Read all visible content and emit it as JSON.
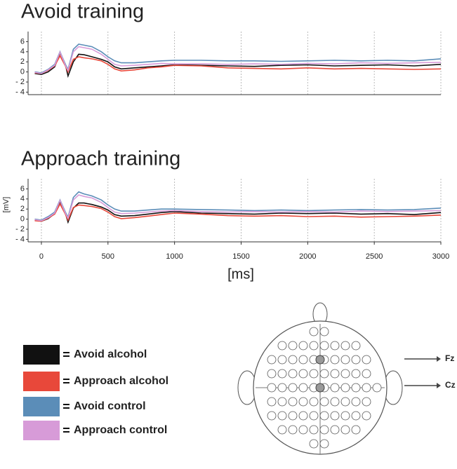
{
  "chart_data": [
    {
      "type": "line",
      "title": "Avoid training",
      "x": [
        -50,
        0,
        50,
        100,
        140,
        180,
        200,
        240,
        280,
        320,
        380,
        450,
        500,
        550,
        600,
        700,
        800,
        900,
        1000,
        1200,
        1400,
        1600,
        1800,
        2000,
        2200,
        2400,
        2600,
        2800,
        3000
      ],
      "xlim": [
        -100,
        3000
      ],
      "ylim": [
        -4.5,
        8
      ],
      "yticks": [
        6,
        4,
        2,
        0,
        {
          "value": -2,
          "label": "- 2"
        },
        {
          "value": -4,
          "label": "- 4"
        }
      ],
      "series": [
        {
          "name": "Avoid alcohol",
          "color": "#111111",
          "values": [
            -0.3,
            -0.5,
            0,
            1,
            3.8,
            1.5,
            -0.8,
            2,
            3.5,
            3.4,
            3,
            2.5,
            2,
            1,
            0.6,
            0.8,
            1,
            1.2,
            1.4,
            1.3,
            1.2,
            1.1,
            1.3,
            1.4,
            1.2,
            1.3,
            1.4,
            1.2,
            1.5
          ]
        },
        {
          "name": "Approach alcohol",
          "color": "#e8483a",
          "values": [
            -0.2,
            -0.3,
            0.3,
            1.2,
            3.2,
            1.2,
            0,
            2.5,
            3,
            2.8,
            2.6,
            2.2,
            1.5,
            0.6,
            0.2,
            0.4,
            0.8,
            1,
            1.3,
            1.2,
            0.8,
            0.7,
            0.6,
            0.8,
            0.6,
            0.7,
            0.6,
            0.5,
            0.6
          ]
        },
        {
          "name": "Avoid control",
          "color": "#5b8db8",
          "values": [
            0,
            -0.2,
            0.5,
            1.5,
            4,
            1.5,
            0.5,
            4.5,
            5.5,
            5.3,
            5,
            4,
            3,
            2.2,
            1.8,
            1.8,
            2,
            2.2,
            2.3,
            2.3,
            2.2,
            2.2,
            2.1,
            2.2,
            2.3,
            2.2,
            2.3,
            2.2,
            2.6
          ]
        },
        {
          "name": "Approach control",
          "color": "#d79bd8",
          "values": [
            -0.1,
            -0.3,
            0.4,
            1.3,
            3.9,
            1.3,
            0.3,
            4,
            5,
            4.8,
            4.5,
            3.5,
            2.5,
            1.5,
            1.2,
            1.3,
            1.5,
            1.7,
            1.6,
            1.6,
            1.5,
            1.6,
            1.5,
            1.7,
            1.6,
            1.8,
            1.7,
            1.8,
            1.9
          ]
        }
      ]
    },
    {
      "type": "line",
      "title": "Approach training",
      "xlabel": "[ms]",
      "ylabel": "[mV]",
      "x": [
        -50,
        0,
        50,
        100,
        140,
        180,
        200,
        240,
        280,
        320,
        380,
        450,
        500,
        550,
        600,
        700,
        800,
        900,
        1000,
        1200,
        1400,
        1600,
        1800,
        2000,
        2200,
        2400,
        2600,
        2800,
        3000
      ],
      "xlim": [
        -100,
        3000
      ],
      "xticks": [
        0,
        500,
        1000,
        1500,
        2000,
        2500,
        3000
      ],
      "ylim": [
        -4.5,
        8
      ],
      "yticks": [
        6,
        4,
        2,
        0,
        {
          "value": -2,
          "label": "- 2"
        },
        {
          "value": -4,
          "label": "- 4"
        }
      ],
      "series": [
        {
          "color": "#111111",
          "values": [
            -0.2,
            -0.4,
            0.1,
            1.1,
            3.5,
            1.2,
            -0.6,
            2.2,
            3.2,
            3.2,
            2.9,
            2.4,
            1.8,
            0.9,
            0.6,
            0.7,
            1,
            1.3,
            1.5,
            1.2,
            1.1,
            1,
            1.2,
            1.1,
            1.2,
            1,
            1.1,
            0.9,
            1.3
          ]
        },
        {
          "color": "#e8483a",
          "values": [
            -0.3,
            -0.4,
            0.2,
            1,
            3,
            1,
            -0.2,
            2.3,
            2.8,
            2.7,
            2.5,
            2.1,
            1.4,
            0.5,
            0.1,
            0.3,
            0.6,
            0.9,
            1.2,
            1,
            0.7,
            0.6,
            0.7,
            0.5,
            0.6,
            0.4,
            0.5,
            0.6,
            0.8
          ]
        },
        {
          "color": "#5b8db8",
          "values": [
            0,
            -0.2,
            0.5,
            1.4,
            3.8,
            1.4,
            0.4,
            4.3,
            5.4,
            5,
            4.6,
            3.8,
            2.8,
            2,
            1.6,
            1.6,
            1.8,
            2,
            2,
            1.9,
            1.8,
            1.7,
            1.8,
            1.7,
            1.8,
            1.9,
            1.8,
            1.9,
            2.2
          ]
        },
        {
          "color": "#d79bd8",
          "values": [
            -0.1,
            -0.3,
            0.3,
            1.2,
            3.7,
            1.2,
            0.2,
            3.8,
            4.8,
            4.5,
            4.2,
            3.3,
            2.3,
            1.4,
            1.1,
            1.2,
            1.4,
            1.6,
            1.7,
            1.5,
            1.4,
            1.5,
            1.4,
            1.5,
            1.4,
            1.6,
            1.5,
            1.6,
            1.7
          ]
        }
      ]
    }
  ],
  "head": {
    "labels": [
      "Fz",
      "Cz"
    ]
  }
}
